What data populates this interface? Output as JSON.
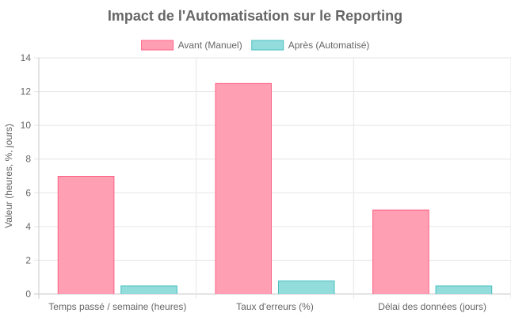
{
  "chart_data": {
    "type": "bar",
    "title": "Impact de l'Automatisation sur le Reporting",
    "ylabel": "Valeur (heures, %, jours)",
    "xlabel": "",
    "categories": [
      "Temps passé / semaine (heures)",
      "Taux d'erreurs (%)",
      "Délai des données (jours)"
    ],
    "series": [
      {
        "name": "Avant (Manuel)",
        "values": [
          7,
          12.5,
          5
        ],
        "fill": "#ff9fb4",
        "stroke": "#ff6384"
      },
      {
        "name": "Après (Automatisé)",
        "values": [
          0.5,
          0.8,
          0.5
        ],
        "fill": "#93dcdc",
        "stroke": "#4bc0c0"
      }
    ],
    "ylim": [
      0,
      14
    ],
    "yticks": [
      "0",
      "2",
      "4",
      "6",
      "8",
      "10",
      "12",
      "14"
    ],
    "grid": true,
    "legend": "top"
  }
}
